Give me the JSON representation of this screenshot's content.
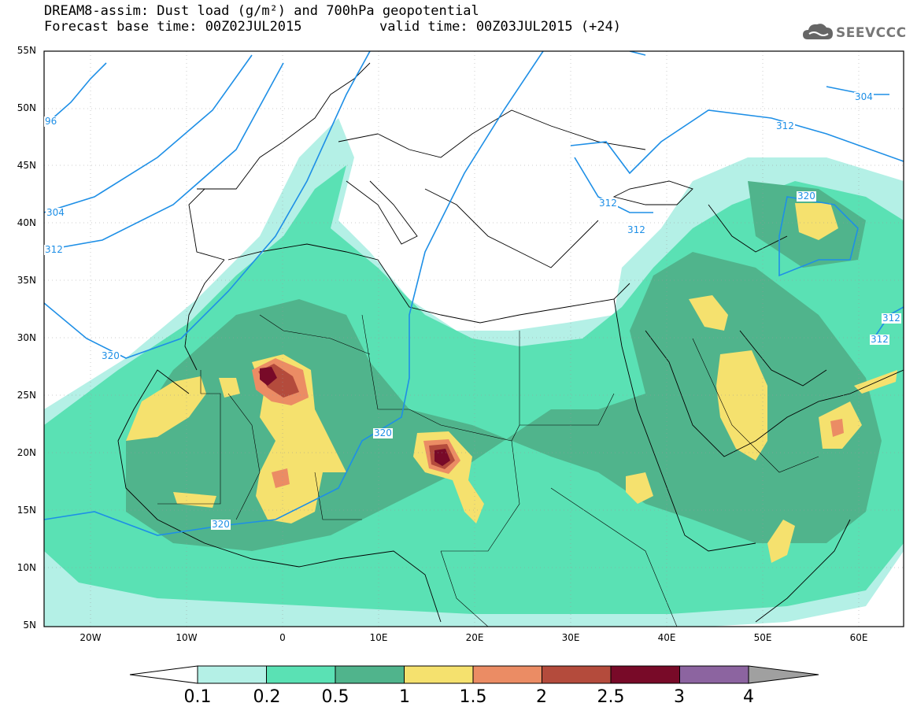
{
  "title": {
    "line1": "DREAM8-assim: Dust load (g/m²) and 700hPa geopotential",
    "line2": "Forecast base time: 00Z02JUL2015",
    "line3": "valid time: 00Z03JUL2015 (+24)"
  },
  "logo": {
    "text": "SEEVCCC",
    "icon": "cloud-icon"
  },
  "map": {
    "latitude_labels": [
      "55N",
      "50N",
      "45N",
      "40N",
      "35N",
      "30N",
      "25N",
      "20N",
      "15N",
      "10N",
      "5N"
    ],
    "longitude_labels": [
      "20W",
      "10W",
      "0",
      "10E",
      "20E",
      "30E",
      "40E",
      "50E",
      "60E"
    ],
    "contour_labels": [
      "96",
      "304",
      "312",
      "320",
      "320",
      "320",
      "312",
      "312",
      "312",
      "304",
      "320",
      "312",
      "312"
    ],
    "contour_color": "#1e8fe6"
  },
  "colorbar": {
    "labels": [
      "0.1",
      "0.2",
      "0.5",
      "1",
      "1.5",
      "2",
      "2.5",
      "3",
      "4"
    ],
    "colors": [
      "#ffffff",
      "#b4f0e6",
      "#5ae1b4",
      "#50b48c",
      "#f5e16e",
      "#eb8c64",
      "#b44b3c",
      "#780a28",
      "#8c64a0",
      "#a0a0a0"
    ]
  }
}
